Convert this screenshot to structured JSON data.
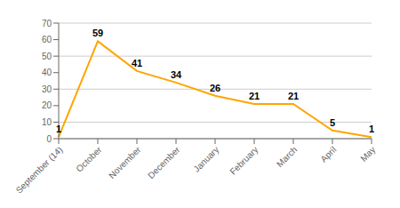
{
  "chart_data": {
    "type": "line",
    "categories": [
      "September (14)",
      "October",
      "November",
      "December",
      "January",
      "February",
      "March",
      "April",
      "May"
    ],
    "values": [
      1,
      59,
      41,
      34,
      26,
      21,
      21,
      5,
      1
    ],
    "color": "#FFA500",
    "ylim": [
      0,
      70
    ],
    "yticks": [
      0,
      10,
      20,
      30,
      40,
      50,
      60,
      70
    ],
    "grid": true,
    "data_labels": true
  }
}
